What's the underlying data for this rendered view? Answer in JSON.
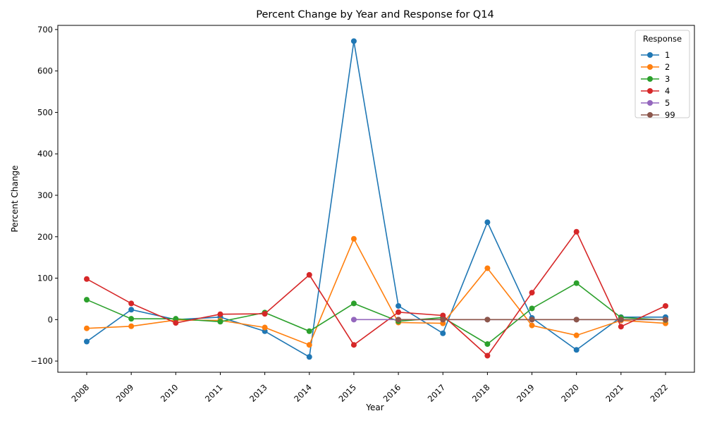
{
  "chart_data": {
    "type": "line",
    "title": "Percent Change by Year and Response for Q14",
    "xlabel": "Year",
    "ylabel": "Percent Change",
    "x": [
      "2008",
      "2009",
      "2010",
      "2011",
      "2013",
      "2014",
      "2015",
      "2016",
      "2017",
      "2018",
      "2019",
      "2020",
      "2021",
      "2022"
    ],
    "ylim": [
      -127,
      710
    ],
    "yticks": [
      -100,
      0,
      100,
      200,
      300,
      400,
      500,
      600,
      700
    ],
    "grid": false,
    "legend": {
      "title": "Response",
      "placement": "top-right"
    },
    "series": [
      {
        "name": "1",
        "color": "#1f77b4",
        "values": [
          -53,
          24,
          0,
          6,
          -28,
          -90,
          672,
          33,
          -33,
          235,
          4,
          -73,
          6,
          6
        ]
      },
      {
        "name": "2",
        "color": "#ff7f0e",
        "values": [
          -21,
          -16,
          -1,
          -2,
          -19,
          -61,
          195,
          -7,
          -9,
          124,
          -14,
          -38,
          -2,
          -9
        ]
      },
      {
        "name": "3",
        "color": "#2ca02c",
        "values": [
          48,
          2,
          2,
          -5,
          17,
          -28,
          39,
          -4,
          5,
          -59,
          27,
          88,
          5,
          -1
        ]
      },
      {
        "name": "4",
        "color": "#d62728",
        "values": [
          98,
          39,
          -8,
          13,
          14,
          108,
          -61,
          18,
          10,
          -87,
          65,
          212,
          -17,
          33
        ]
      },
      {
        "name": "5",
        "color": "#9467bd",
        "values": [
          null,
          null,
          null,
          null,
          null,
          null,
          0,
          0,
          0,
          0,
          0,
          0,
          0,
          0
        ]
      },
      {
        "name": "99",
        "color": "#8c564b",
        "values": [
          null,
          null,
          null,
          null,
          null,
          null,
          null,
          0,
          0,
          0,
          0,
          0,
          0,
          0
        ]
      }
    ]
  }
}
